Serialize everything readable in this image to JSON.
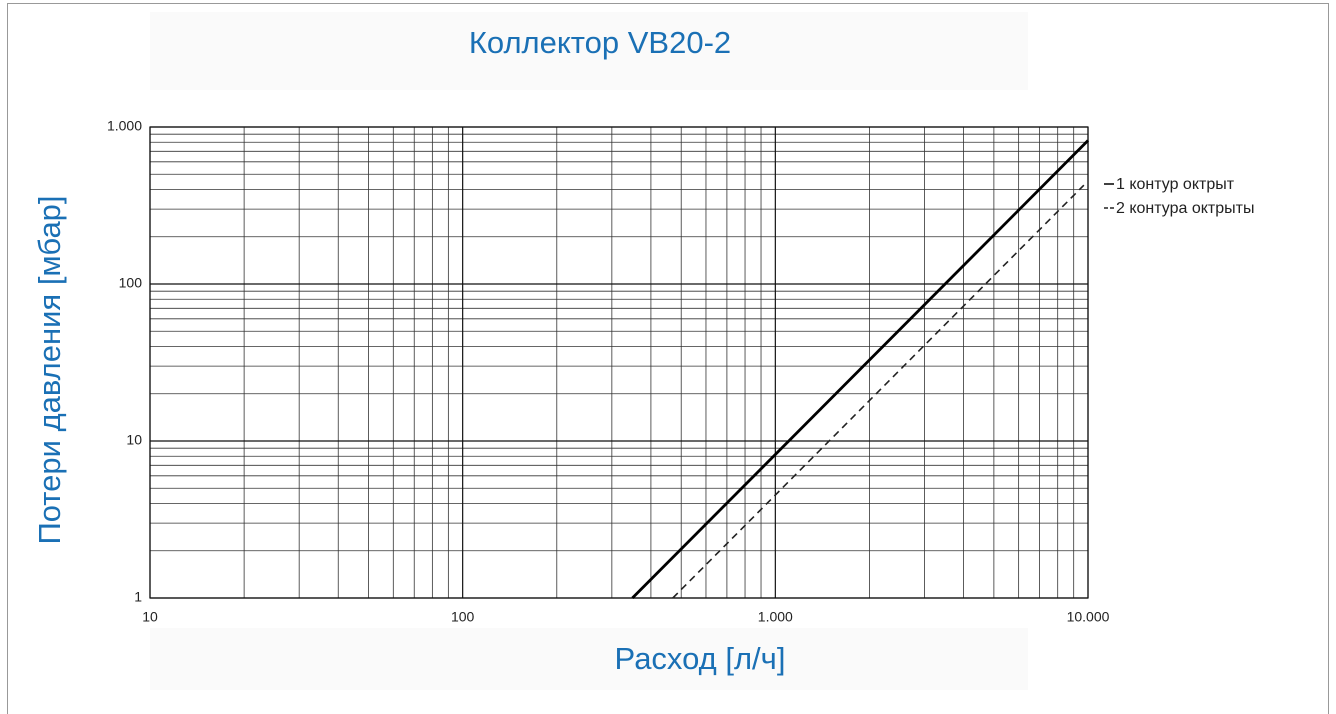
{
  "chart_data": {
    "type": "line",
    "title": "Коллектор VB20-2",
    "x_label": "Расход [л/ч]",
    "y_label": "Потери давления [мбар]",
    "log_x": true,
    "log_y": true,
    "grid": true,
    "legend": "right",
    "series": [
      {
        "name": "1 контур октрыт",
        "color": "#000000",
        "style": "solid",
        "x": [
          349,
          10000
        ],
        "values": [
          1,
          820
        ]
      },
      {
        "name": "2 контура октрыты",
        "color": "#222222",
        "style": "dashed",
        "x": [
          470,
          9700
        ],
        "values": [
          1,
          426
        ]
      }
    ],
    "xlim": [
      10,
      10000
    ],
    "xticks": [
      10,
      100,
      {
        "value": 1000,
        "label": "1.000"
      },
      {
        "value": 10000,
        "label": "10.000"
      }
    ],
    "ylim": [
      1,
      1000
    ],
    "yticks": [
      1,
      10,
      100,
      {
        "value": 1000,
        "label": "1.000"
      }
    ]
  }
}
